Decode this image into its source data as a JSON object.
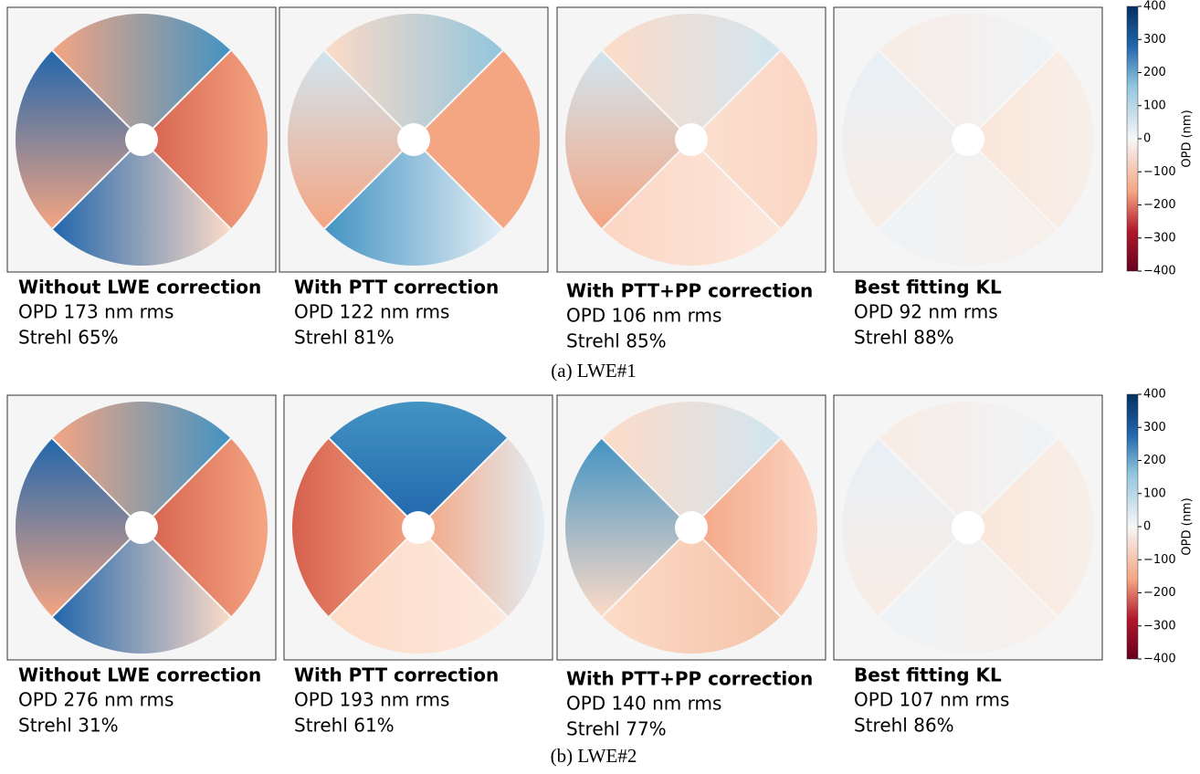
{
  "figure": {
    "rows": [
      {
        "panels": [
          {
            "title": "Without LWE correction",
            "opd": "OPD 173 nm rms",
            "strehl": "Strehl 65%"
          },
          {
            "title": "With PTT correction",
            "opd": "OPD 122 nm rms",
            "strehl": "Strehl 81%"
          },
          {
            "title": "With PTT+PP correction",
            "opd": "OPD 106 nm rms",
            "strehl": "Strehl 85%"
          },
          {
            "title": "Best fitting KL",
            "opd": "OPD 92 nm rms",
            "strehl": "Strehl 88%"
          }
        ],
        "caption": "(a) LWE#1",
        "colorbar": {
          "label": "OPD (nm)",
          "ticks": [
            "400",
            "300",
            "200",
            "100",
            "0",
            "−100",
            "−200",
            "−300",
            "−400"
          ]
        }
      },
      {
        "panels": [
          {
            "title": "Without LWE correction",
            "opd": "OPD 276 nm rms",
            "strehl": "Strehl 31%"
          },
          {
            "title": "With PTT correction",
            "opd": "OPD 193 nm rms",
            "strehl": "Strehl 61%"
          },
          {
            "title": "With PTT+PP correction",
            "opd": "OPD 140 nm rms",
            "strehl": "Strehl 77%"
          },
          {
            "title": "Best fitting KL",
            "opd": "OPD 107 nm rms",
            "strehl": "Strehl 86%"
          }
        ],
        "caption": "(b) LWE#2",
        "colorbar": {
          "label": "OPD (nm)",
          "ticks": [
            "400",
            "300",
            "200",
            "100",
            "0",
            "−100",
            "−200",
            "−300",
            "−400"
          ]
        }
      }
    ]
  }
}
